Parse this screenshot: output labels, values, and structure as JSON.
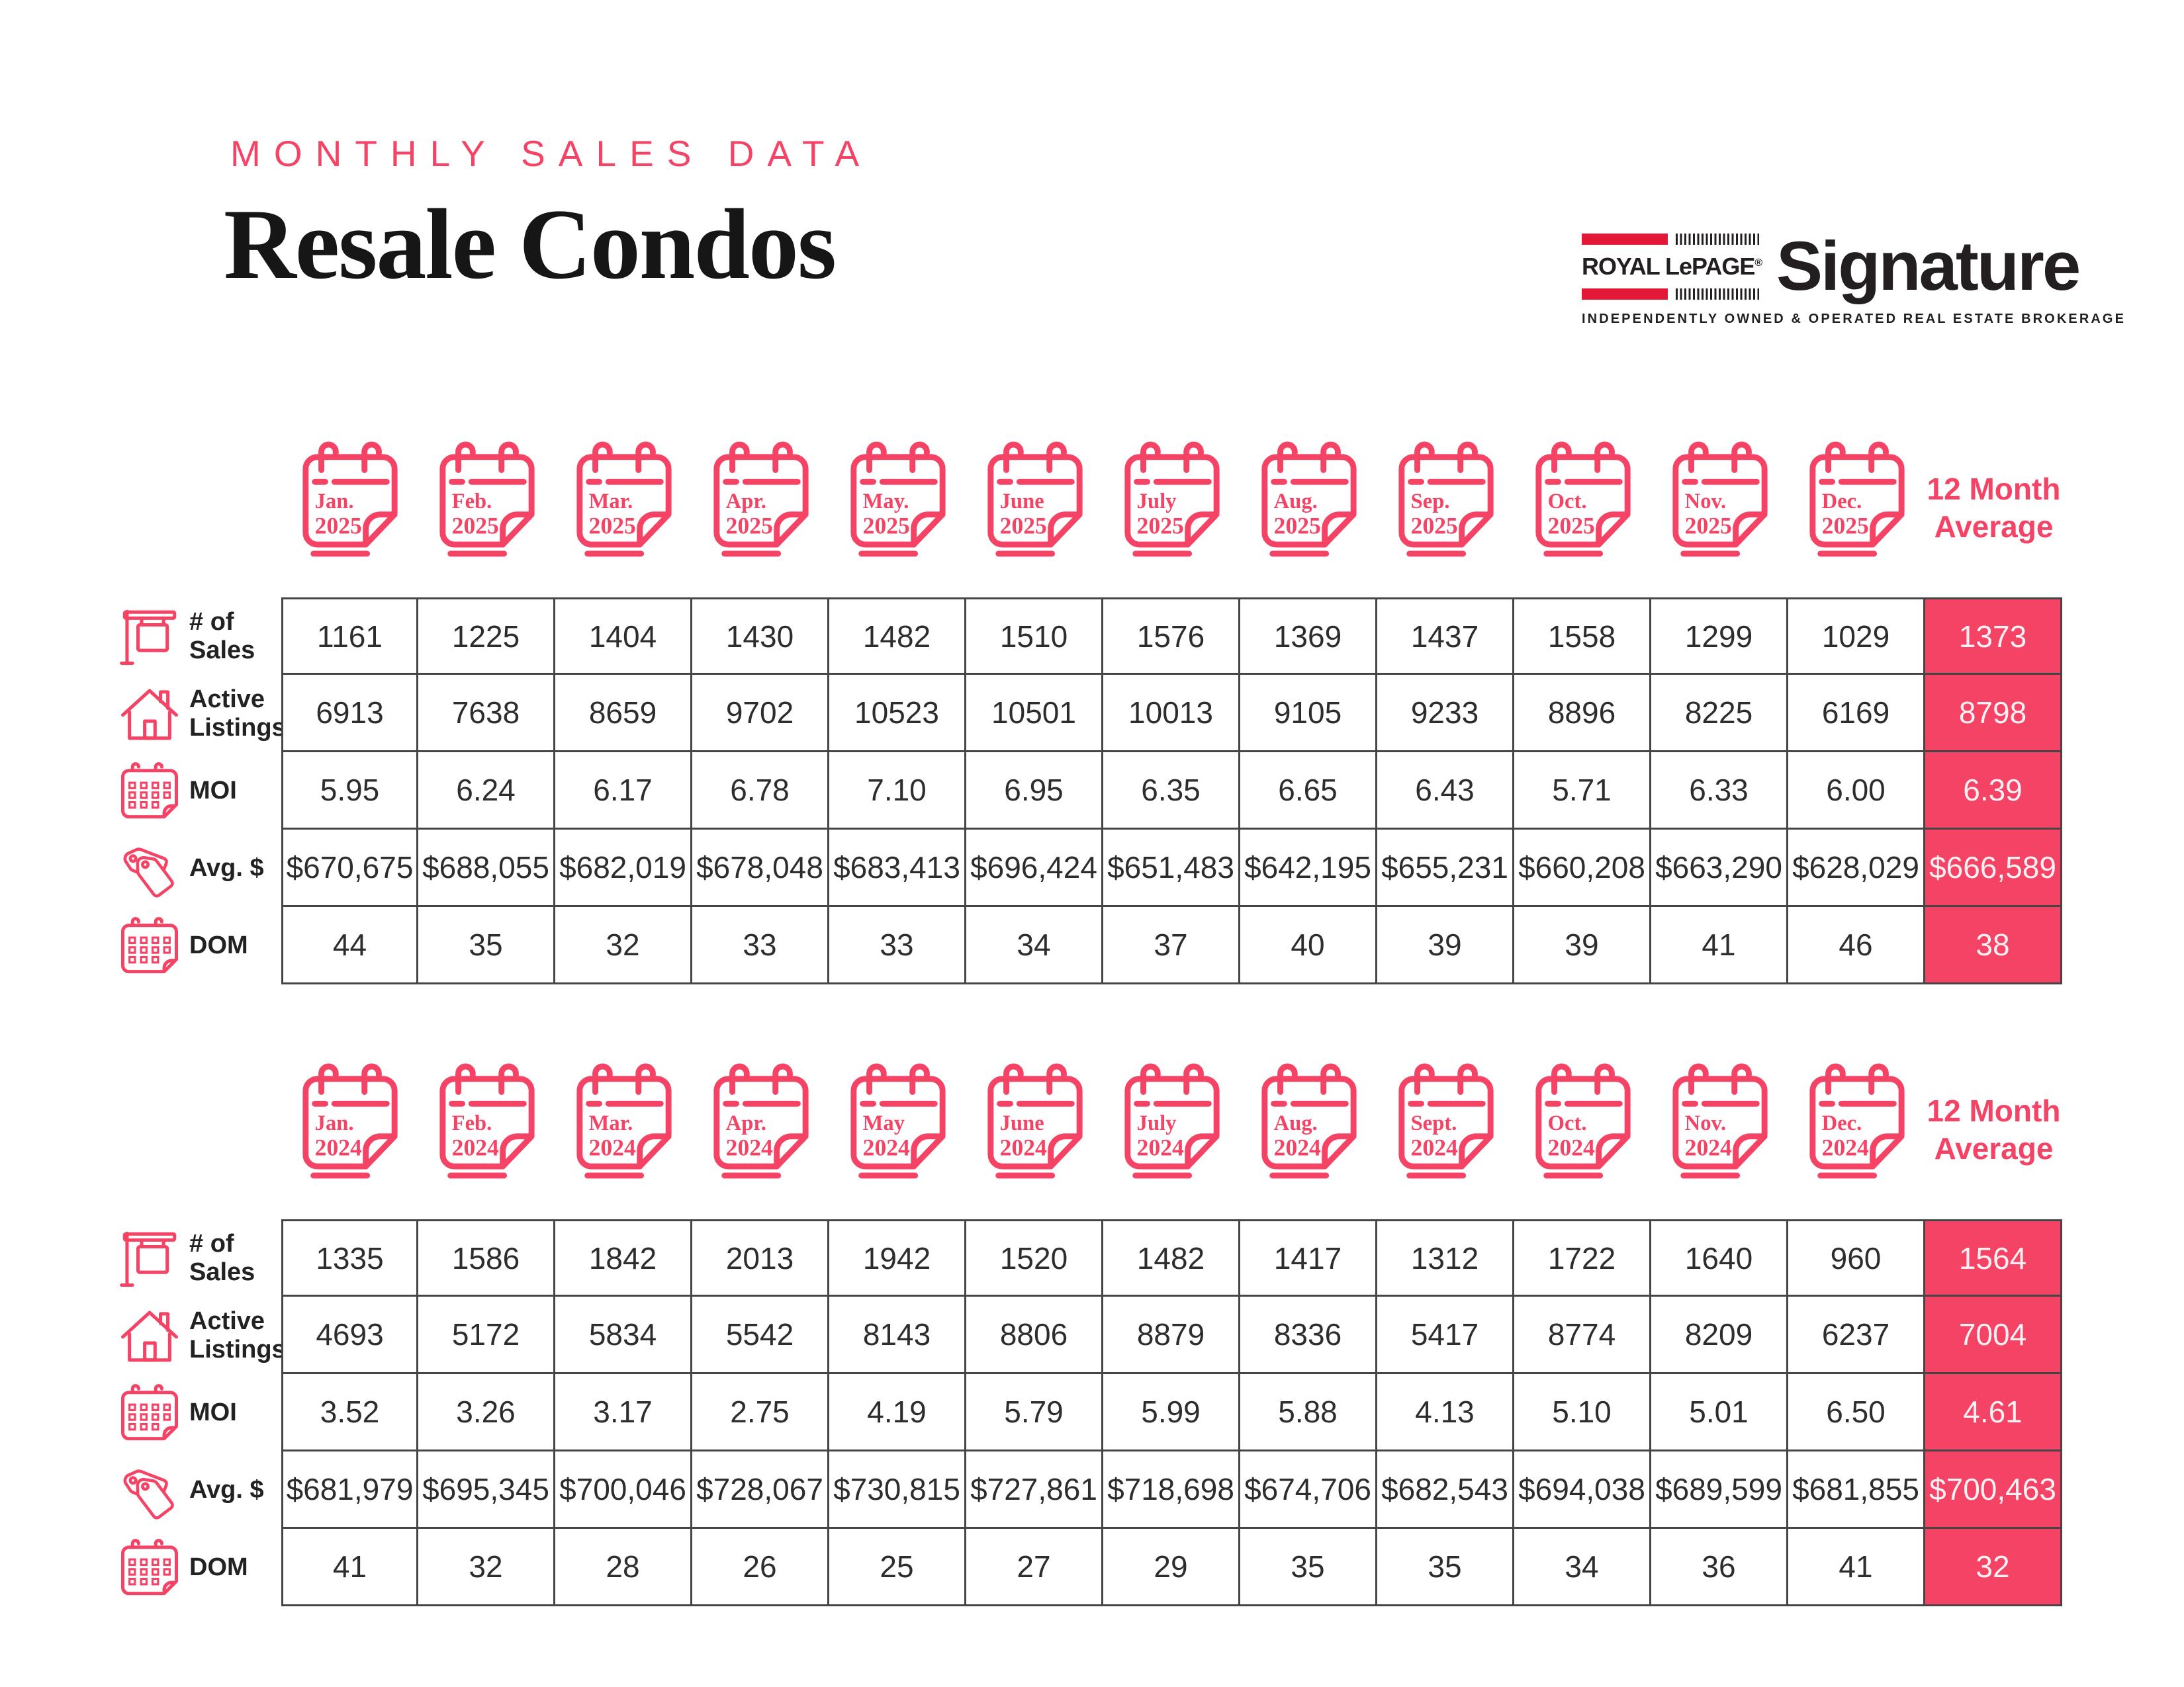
{
  "accent": "#f54365",
  "header": {
    "eyebrow": "MONTHLY SALES DATA",
    "title": "Resale Condos"
  },
  "logo": {
    "brand": "ROYAL LePAGE",
    "registered": "®",
    "name": "Signature",
    "tagline": "INDEPENDENTLY OWNED & OPERATED REAL ESTATE BROKERAGE",
    "bar_color": "#e31837"
  },
  "average_header": "12 Month Average",
  "row_labels": [
    {
      "icon": "sale-sign-icon",
      "label": "# of Sales"
    },
    {
      "icon": "house-icon",
      "label": "Active Listings"
    },
    {
      "icon": "calendar-grid-icon",
      "label": "MOI"
    },
    {
      "icon": "price-tags-icon",
      "label": "Avg. $"
    },
    {
      "icon": "calendar-grid-icon",
      "label": "DOM"
    }
  ],
  "tables": [
    {
      "year": "2025",
      "months": [
        "Jan.",
        "Feb.",
        "Mar.",
        "Apr.",
        "May.",
        "June",
        "July",
        "Aug.",
        "Sep.",
        "Oct.",
        "Nov.",
        "Dec."
      ],
      "rows": [
        {
          "label": "# of Sales",
          "values": [
            "1161",
            "1225",
            "1404",
            "1430",
            "1482",
            "1510",
            "1576",
            "1369",
            "1437",
            "1558",
            "1299",
            "1029"
          ],
          "average": "1373"
        },
        {
          "label": "Active Listings",
          "values": [
            "6913",
            "7638",
            "8659",
            "9702",
            "10523",
            "10501",
            "10013",
            "9105",
            "9233",
            "8896",
            "8225",
            "6169"
          ],
          "average": "8798"
        },
        {
          "label": "MOI",
          "values": [
            "5.95",
            "6.24",
            "6.17",
            "6.78",
            "7.10",
            "6.95",
            "6.35",
            "6.65",
            "6.43",
            "5.71",
            "6.33",
            "6.00"
          ],
          "average": "6.39"
        },
        {
          "label": "Avg. $",
          "values": [
            "$670,675",
            "$688,055",
            "$682,019",
            "$678,048",
            "$683,413",
            "$696,424",
            "$651,483",
            "$642,195",
            "$655,231",
            "$660,208",
            "$663,290",
            "$628,029"
          ],
          "average": "$666,589"
        },
        {
          "label": "DOM",
          "values": [
            "44",
            "35",
            "32",
            "33",
            "33",
            "34",
            "37",
            "40",
            "39",
            "39",
            "41",
            "46"
          ],
          "average": "38"
        }
      ]
    },
    {
      "year": "2024",
      "months": [
        "Jan.",
        "Feb.",
        "Mar.",
        "Apr.",
        "May",
        "June",
        "July",
        "Aug.",
        "Sept.",
        "Oct.",
        "Nov.",
        "Dec."
      ],
      "rows": [
        {
          "label": "# of Sales",
          "values": [
            "1335",
            "1586",
            "1842",
            "2013",
            "1942",
            "1520",
            "1482",
            "1417",
            "1312",
            "1722",
            "1640",
            "960"
          ],
          "average": "1564"
        },
        {
          "label": "Active Listings",
          "values": [
            "4693",
            "5172",
            "5834",
            "5542",
            "8143",
            "8806",
            "8879",
            "8336",
            "5417",
            "8774",
            "8209",
            "6237"
          ],
          "average": "7004"
        },
        {
          "label": "MOI",
          "values": [
            "3.52",
            "3.26",
            "3.17",
            "2.75",
            "4.19",
            "5.79",
            "5.99",
            "5.88",
            "4.13",
            "5.10",
            "5.01",
            "6.50"
          ],
          "average": "4.61"
        },
        {
          "label": "Avg. $",
          "values": [
            "$681,979",
            "$695,345",
            "$700,046",
            "$728,067",
            "$730,815",
            "$727,861",
            "$718,698",
            "$674,706",
            "$682,543",
            "$694,038",
            "$689,599",
            "$681,855"
          ],
          "average": "$700,463"
        },
        {
          "label": "DOM",
          "values": [
            "41",
            "32",
            "28",
            "26",
            "25",
            "27",
            "29",
            "35",
            "35",
            "34",
            "36",
            "41"
          ],
          "average": "32"
        }
      ]
    }
  ]
}
